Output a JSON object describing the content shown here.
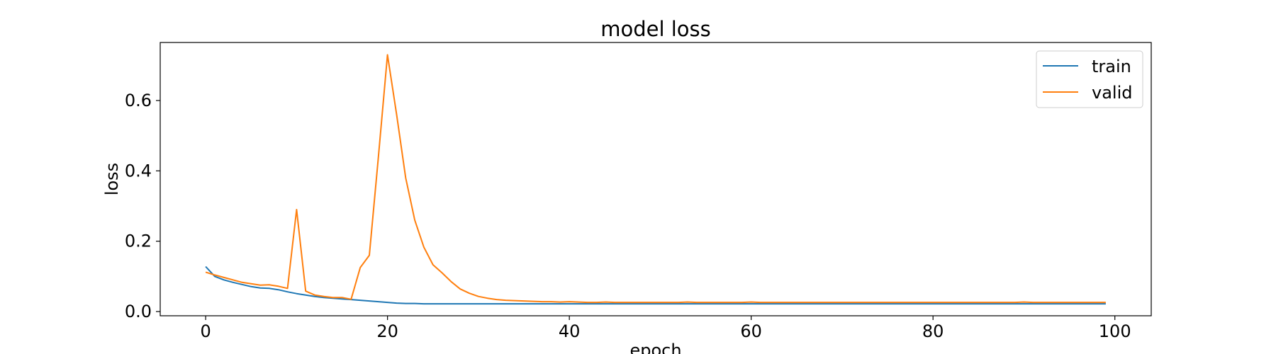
{
  "chart_data": {
    "type": "line",
    "title": "model loss",
    "xlabel": "epoch",
    "ylabel": "loss",
    "xlim": [
      -5,
      104
    ],
    "ylim": [
      -0.012,
      0.765
    ],
    "x_ticks": [
      0,
      20,
      40,
      60,
      80,
      100
    ],
    "y_ticks": [
      0.0,
      0.2,
      0.4,
      0.6
    ],
    "y_tick_labels": [
      "0.0",
      "0.2",
      "0.4",
      "0.6"
    ],
    "grid": false,
    "legend_position": "top-right",
    "series": [
      {
        "name": "train",
        "color": "#1f77b4",
        "x": [
          0,
          1,
          2,
          3,
          4,
          5,
          6,
          7,
          8,
          9,
          10,
          11,
          12,
          13,
          14,
          15,
          16,
          17,
          18,
          19,
          20,
          21,
          22,
          23,
          24,
          25,
          26,
          27,
          28,
          29,
          30,
          31,
          32,
          33,
          34,
          35,
          36,
          37,
          38,
          39,
          40,
          41,
          42,
          43,
          44,
          45,
          46,
          47,
          48,
          49,
          50,
          51,
          52,
          53,
          54,
          55,
          56,
          57,
          58,
          59,
          60,
          61,
          62,
          63,
          64,
          65,
          66,
          67,
          68,
          69,
          70,
          71,
          72,
          73,
          74,
          75,
          76,
          77,
          78,
          79,
          80,
          81,
          82,
          83,
          84,
          85,
          86,
          87,
          88,
          89,
          90,
          91,
          92,
          93,
          94,
          95,
          96,
          97,
          98,
          99
        ],
        "values": [
          0.128,
          0.1,
          0.09,
          0.083,
          0.077,
          0.071,
          0.067,
          0.066,
          0.062,
          0.056,
          0.051,
          0.047,
          0.043,
          0.04,
          0.038,
          0.036,
          0.034,
          0.032,
          0.03,
          0.028,
          0.026,
          0.024,
          0.023,
          0.023,
          0.022,
          0.022,
          0.022,
          0.022,
          0.022,
          0.022,
          0.022,
          0.022,
          0.022,
          0.022,
          0.022,
          0.022,
          0.022,
          0.022,
          0.022,
          0.022,
          0.022,
          0.022,
          0.022,
          0.022,
          0.022,
          0.022,
          0.022,
          0.022,
          0.022,
          0.022,
          0.022,
          0.022,
          0.022,
          0.022,
          0.022,
          0.022,
          0.022,
          0.022,
          0.022,
          0.022,
          0.022,
          0.022,
          0.022,
          0.022,
          0.022,
          0.022,
          0.022,
          0.022,
          0.022,
          0.022,
          0.022,
          0.022,
          0.022,
          0.022,
          0.022,
          0.022,
          0.022,
          0.022,
          0.022,
          0.022,
          0.022,
          0.022,
          0.022,
          0.022,
          0.022,
          0.022,
          0.022,
          0.022,
          0.022,
          0.022,
          0.022,
          0.022,
          0.022,
          0.022,
          0.022,
          0.022,
          0.022,
          0.022,
          0.022,
          0.022
        ]
      },
      {
        "name": "valid",
        "color": "#ff7f0e",
        "x": [
          0,
          1,
          2,
          3,
          4,
          5,
          6,
          7,
          8,
          9,
          10,
          11,
          12,
          13,
          14,
          15,
          16,
          17,
          18,
          19,
          20,
          21,
          22,
          23,
          24,
          25,
          26,
          27,
          28,
          29,
          30,
          31,
          32,
          33,
          34,
          35,
          36,
          37,
          38,
          39,
          40,
          41,
          42,
          43,
          44,
          45,
          46,
          47,
          48,
          49,
          50,
          51,
          52,
          53,
          54,
          55,
          56,
          57,
          58,
          59,
          60,
          61,
          62,
          63,
          64,
          65,
          66,
          67,
          68,
          69,
          70,
          71,
          72,
          73,
          74,
          75,
          76,
          77,
          78,
          79,
          80,
          81,
          82,
          83,
          84,
          85,
          86,
          87,
          88,
          89,
          90,
          91,
          92,
          93,
          94,
          95,
          96,
          97,
          98,
          99
        ],
        "values": [
          0.112,
          0.104,
          0.097,
          0.09,
          0.083,
          0.079,
          0.075,
          0.076,
          0.072,
          0.066,
          0.29,
          0.058,
          0.047,
          0.043,
          0.04,
          0.04,
          0.035,
          0.125,
          0.16,
          0.44,
          0.73,
          0.56,
          0.38,
          0.26,
          0.183,
          0.133,
          0.11,
          0.085,
          0.064,
          0.052,
          0.043,
          0.038,
          0.034,
          0.032,
          0.031,
          0.03,
          0.029,
          0.028,
          0.028,
          0.027,
          0.028,
          0.027,
          0.026,
          0.026,
          0.027,
          0.026,
          0.026,
          0.026,
          0.026,
          0.026,
          0.026,
          0.026,
          0.026,
          0.027,
          0.026,
          0.026,
          0.026,
          0.026,
          0.026,
          0.026,
          0.027,
          0.026,
          0.026,
          0.026,
          0.026,
          0.026,
          0.026,
          0.026,
          0.026,
          0.026,
          0.026,
          0.026,
          0.026,
          0.026,
          0.026,
          0.026,
          0.026,
          0.026,
          0.026,
          0.026,
          0.026,
          0.026,
          0.026,
          0.026,
          0.026,
          0.026,
          0.026,
          0.026,
          0.026,
          0.026,
          0.027,
          0.026,
          0.026,
          0.026,
          0.026,
          0.026,
          0.026,
          0.026,
          0.026,
          0.026
        ]
      }
    ]
  }
}
